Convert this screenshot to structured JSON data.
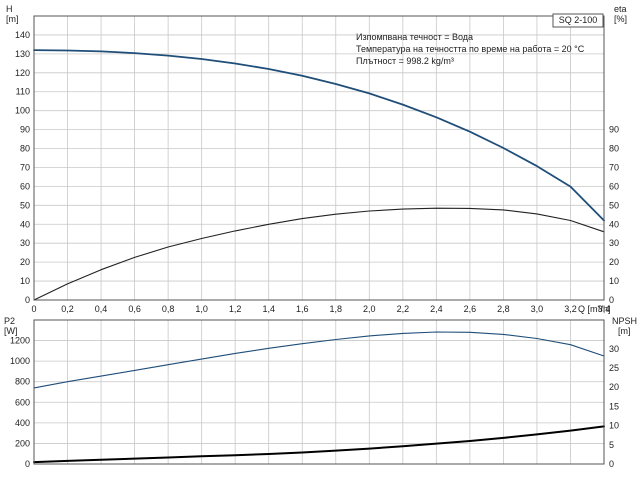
{
  "chart_data": [
    {
      "type": "line",
      "title": "SQ 2-100",
      "annotations": [
        "Изпомпвана течност = Вода",
        "Температура на течността по време на работа = 20 °C",
        "Плътност = 998.2 kg/m³"
      ],
      "xlabel": "Q [m³/h]",
      "xlim": [
        0,
        3.4
      ],
      "x_ticks": [
        "0",
        "0,2",
        "0,4",
        "0,6",
        "0,8",
        "1,0",
        "1,2",
        "1,4",
        "1,6",
        "1,8",
        "2,0",
        "2,2",
        "2,4",
        "2,6",
        "2,8",
        "3,0",
        "3,2",
        "3,4"
      ],
      "y_left": {
        "label": "H",
        "unit": "[m]",
        "lim": [
          0,
          150
        ],
        "ticks": [
          0,
          10,
          20,
          30,
          40,
          50,
          60,
          70,
          80,
          90,
          100,
          110,
          120,
          130,
          140
        ]
      },
      "y_right": {
        "label": "eta",
        "unit": "[%]",
        "lim": [
          0,
          150
        ],
        "ticks": [
          0,
          10,
          20,
          30,
          40,
          50,
          60,
          70,
          80,
          90
        ]
      },
      "grid": true,
      "series": [
        {
          "axis": "left",
          "color": "#1f4e79",
          "x": [
            0,
            0.2,
            0.4,
            0.6,
            0.8,
            1.0,
            1.2,
            1.4,
            1.6,
            1.8,
            2.0,
            2.2,
            2.4,
            2.6,
            2.8,
            3.0,
            3.2,
            3.4
          ],
          "y": [
            132,
            131.8,
            131.3,
            130.4,
            129.1,
            127.3,
            124.9,
            122.0,
            118.4,
            114.1,
            109.1,
            103.2,
            96.5,
            88.9,
            80.3,
            70.7,
            59.9,
            42.0
          ]
        },
        {
          "axis": "right",
          "color": "#222222",
          "x": [
            0,
            0.2,
            0.4,
            0.6,
            0.8,
            1.0,
            1.2,
            1.4,
            1.6,
            1.8,
            2.0,
            2.2,
            2.4,
            2.6,
            2.8,
            3.0,
            3.2,
            3.4
          ],
          "y": [
            0,
            8.5,
            16,
            22.5,
            28,
            32.5,
            36.5,
            40,
            43,
            45.3,
            47,
            48,
            48.5,
            48.4,
            47.6,
            45.5,
            42,
            36
          ]
        }
      ]
    },
    {
      "type": "line",
      "xlim": [
        0,
        3.4
      ],
      "y_left": {
        "label": "P2",
        "unit": "[W]",
        "lim": [
          0,
          1400
        ],
        "ticks": [
          0,
          200,
          400,
          600,
          800,
          1000,
          1200
        ]
      },
      "y_right": {
        "label": "NPSH",
        "unit": "[m]",
        "lim": [
          0,
          37.5
        ],
        "ticks": [
          0,
          5,
          10,
          15,
          20,
          25,
          30
        ]
      },
      "grid": true,
      "series": [
        {
          "axis": "left",
          "color": "#1f4e79",
          "x": [
            0,
            0.2,
            0.4,
            0.6,
            0.8,
            1.0,
            1.2,
            1.4,
            1.6,
            1.8,
            2.0,
            2.2,
            2.4,
            2.6,
            2.8,
            3.0,
            3.2,
            3.4
          ],
          "y": [
            740,
            800,
            855,
            910,
            965,
            1020,
            1075,
            1125,
            1170,
            1210,
            1245,
            1270,
            1283,
            1280,
            1260,
            1220,
            1160,
            1050
          ]
        },
        {
          "axis": "right",
          "color": "#000000",
          "x": [
            0,
            0.2,
            0.4,
            0.6,
            0.8,
            1.0,
            1.2,
            1.4,
            1.6,
            1.8,
            2.0,
            2.2,
            2.4,
            2.6,
            2.8,
            3.0,
            3.2,
            3.4
          ],
          "y": [
            0.5,
            0.8,
            1.1,
            1.4,
            1.7,
            2.0,
            2.3,
            2.6,
            3.0,
            3.5,
            4.0,
            4.6,
            5.3,
            6.0,
            6.8,
            7.7,
            8.7,
            9.8
          ]
        }
      ]
    }
  ]
}
